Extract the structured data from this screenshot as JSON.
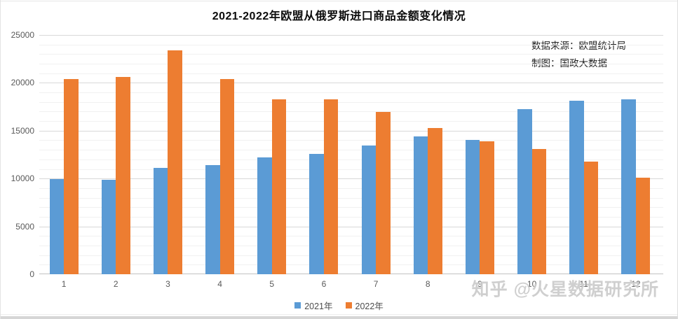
{
  "chart_data": {
    "type": "bar",
    "title": "2021-2022年欧盟从俄罗斯进口商品金额变化情况",
    "categories": [
      "1",
      "2",
      "3",
      "4",
      "5",
      "6",
      "7",
      "8",
      "9",
      "10",
      "11",
      "12"
    ],
    "series": [
      {
        "name": "2021年",
        "color": "#5B9BD5",
        "values": [
          9950,
          9850,
          11100,
          11400,
          12200,
          12600,
          13450,
          14400,
          14000,
          17250,
          18150,
          18250
        ]
      },
      {
        "name": "2022年",
        "color": "#ED7D31",
        "values": [
          20400,
          20650,
          23400,
          20400,
          18300,
          18300,
          16950,
          15300,
          13900,
          13100,
          11800,
          10100
        ]
      }
    ],
    "xlabel": "",
    "ylabel": "",
    "ylim": [
      0,
      25000
    ],
    "ytick_interval": 5000,
    "minor_gridline_interval": 1000,
    "grid": true,
    "legend_position": "bottom"
  },
  "annotations": {
    "source_line1": "数据来源：欧盟统计局",
    "source_line2": "制图：国政大数据"
  },
  "watermark": {
    "text": "知乎 @火星数据研究所"
  },
  "colors": {
    "series_2021": "#5B9BD5",
    "series_2022": "#ED7D31",
    "major_gridline": "#d8d8d8",
    "minor_gridline": "#f1f1f1",
    "axis_text": "#595959",
    "title_text": "#0d0d0d"
  }
}
